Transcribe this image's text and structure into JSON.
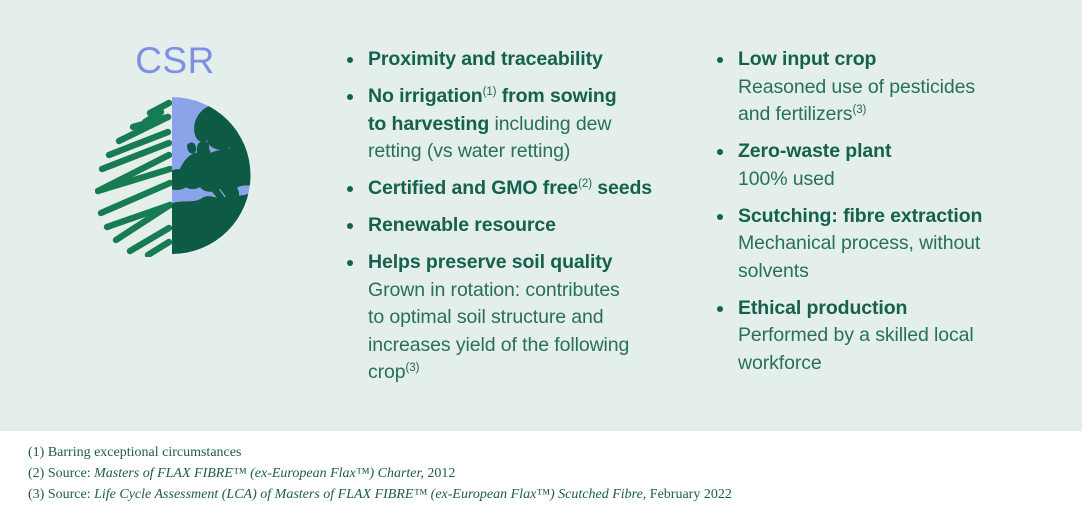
{
  "slide": {
    "title": "CSR",
    "background_color": "#E4EEEA",
    "title_color": "#7D90E6",
    "bold_text_color": "#14624D",
    "regular_text_color": "#27705B",
    "footnote_color": "#1E5C4C",
    "globe_icon": {
      "name": "globe-flax-icon",
      "sea_color": "#8BA3E8",
      "land_color": "#0E5B45",
      "scribble_color": "#177B53"
    }
  },
  "columns": [
    {
      "items": [
        {
          "runs": [
            {
              "t": "Proximity and traceability",
              "b": true
            }
          ]
        },
        {
          "runs": [
            {
              "t": "No irrigation",
              "b": true
            },
            {
              "t": "(1)",
              "sup": true
            },
            {
              "t": " from sowing\nto harvesting",
              "b": true
            },
            {
              "t": " including dew\nretting (vs water retting)"
            }
          ]
        },
        {
          "runs": [
            {
              "t": "Certified and GMO free",
              "b": true
            },
            {
              "t": "(2)",
              "sup": true
            },
            {
              "t": " seeds",
              "b": true
            }
          ]
        },
        {
          "runs": [
            {
              "t": "Renewable resource",
              "b": true
            }
          ]
        },
        {
          "runs": [
            {
              "t": "Helps preserve soil quality",
              "b": true
            },
            {
              "t": "\nGrown in rotation: contributes\nto optimal soil structure and\nincreases yield of the following\ncrop"
            },
            {
              "t": "(3)",
              "sup": true
            }
          ]
        }
      ]
    },
    {
      "items": [
        {
          "runs": [
            {
              "t": "Low input crop",
              "b": true
            },
            {
              "t": "\nReasoned use of pesticides\nand fertilizers"
            },
            {
              "t": "(3)",
              "sup": true
            }
          ]
        },
        {
          "runs": [
            {
              "t": "Zero-waste plant",
              "b": true
            },
            {
              "t": "\n100% used"
            }
          ]
        },
        {
          "runs": [
            {
              "t": "Scutching: fibre extraction",
              "b": true
            },
            {
              "t": "\nMechanical process, without\nsolvents"
            }
          ]
        },
        {
          "runs": [
            {
              "t": "Ethical production",
              "b": true
            },
            {
              "t": "\nPerformed by a skilled local\nworkforce"
            }
          ]
        }
      ]
    }
  ],
  "footnotes": [
    {
      "runs": [
        {
          "t": "(1) Barring exceptional circumstances"
        }
      ]
    },
    {
      "runs": [
        {
          "t": "(2) Source: "
        },
        {
          "t": "Masters of FLAX FIBRE™ (ex-European Flax™) Charter,",
          "i": true
        },
        {
          "t": " 2012"
        }
      ]
    },
    {
      "runs": [
        {
          "t": "(3) Source: "
        },
        {
          "t": "Life Cycle Assessment (LCA) of Masters of FLAX FIBRE™ (ex-European Flax™) Scutched Fibre,",
          "i": true
        },
        {
          "t": " February 2022"
        }
      ]
    }
  ]
}
